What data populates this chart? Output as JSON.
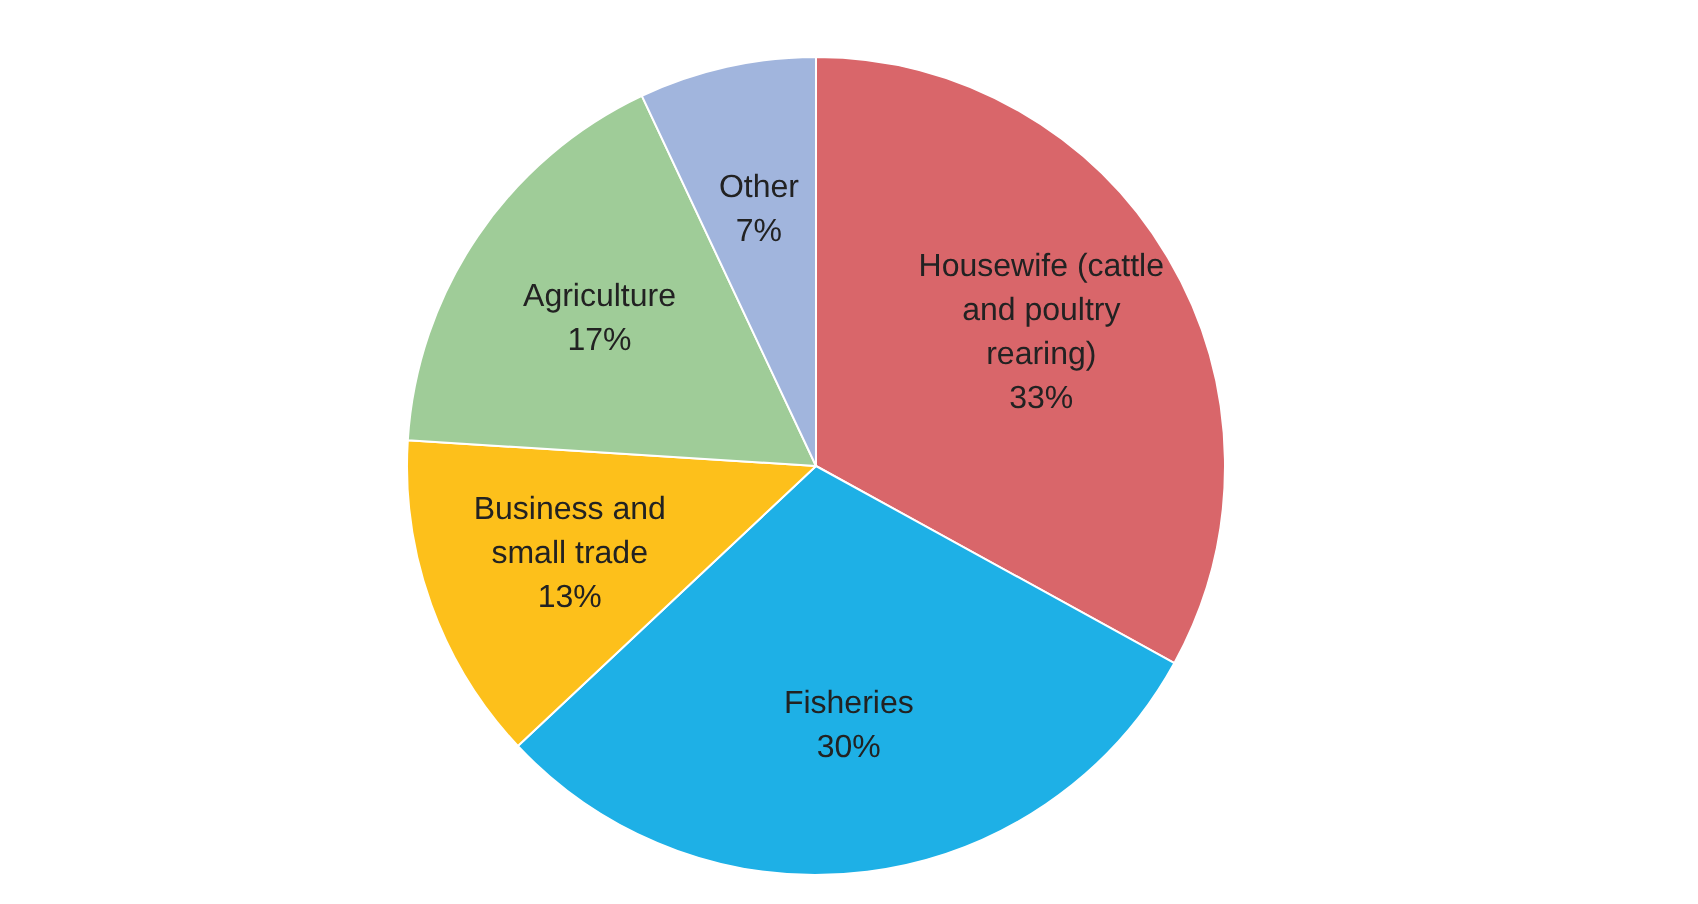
{
  "chart_data": {
    "type": "pie",
    "categories": [
      "Housewife (cattle and poultry rearing)",
      "Fisheries",
      "Business and small trade",
      "Agriculture",
      "Other"
    ],
    "values": [
      33,
      30,
      13,
      17,
      7
    ],
    "colors": [
      "#d9666a",
      "#1eb0e6",
      "#fdc01b",
      "#9fcc98",
      "#a1b5dd"
    ],
    "value_labels": [
      "33%",
      "30%",
      "13%",
      "17%",
      "7%"
    ],
    "legend": false
  }
}
